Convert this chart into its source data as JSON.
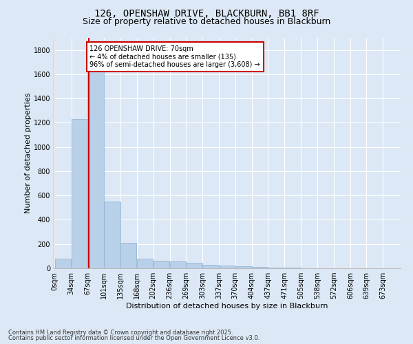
{
  "title_line1": "126, OPENSHAW DRIVE, BLACKBURN, BB1 8RF",
  "title_line2": "Size of property relative to detached houses in Blackburn",
  "xlabel": "Distribution of detached houses by size in Blackburn",
  "ylabel": "Number of detached properties",
  "bar_color": "#b8d0e8",
  "bar_edge_color": "#8ab0d0",
  "background_color": "#dce8f5",
  "grid_color": "#ffffff",
  "fig_background_color": "#dce8f5",
  "annotation_box_text": "126 OPENSHAW DRIVE: 70sqm\n← 4% of detached houses are smaller (135)\n96% of semi-detached houses are larger (3,608) →",
  "vline_x": 70,
  "vline_color": "#cc0000",
  "footer_line1": "Contains HM Land Registry data © Crown copyright and database right 2025.",
  "footer_line2": "Contains public sector information licensed under the Open Government Licence v3.0.",
  "categories": [
    "0sqm",
    "34sqm",
    "67sqm",
    "101sqm",
    "135sqm",
    "168sqm",
    "202sqm",
    "236sqm",
    "269sqm",
    "303sqm",
    "337sqm",
    "370sqm",
    "404sqm",
    "437sqm",
    "471sqm",
    "505sqm",
    "538sqm",
    "572sqm",
    "606sqm",
    "639sqm",
    "673sqm"
  ],
  "bin_edges": [
    0,
    34,
    67,
    101,
    135,
    168,
    202,
    236,
    269,
    303,
    337,
    370,
    404,
    437,
    471,
    505,
    538,
    572,
    606,
    639,
    673
  ],
  "values": [
    80,
    1230,
    1700,
    550,
    210,
    80,
    60,
    55,
    45,
    30,
    20,
    15,
    10,
    5,
    3,
    2,
    1,
    1,
    1,
    0,
    0
  ],
  "ylim": [
    0,
    1900
  ],
  "yticks": [
    0,
    200,
    400,
    600,
    800,
    1000,
    1200,
    1400,
    1600,
    1800
  ],
  "title_fontsize": 10,
  "subtitle_fontsize": 9,
  "axis_label_fontsize": 8,
  "tick_fontsize": 7
}
